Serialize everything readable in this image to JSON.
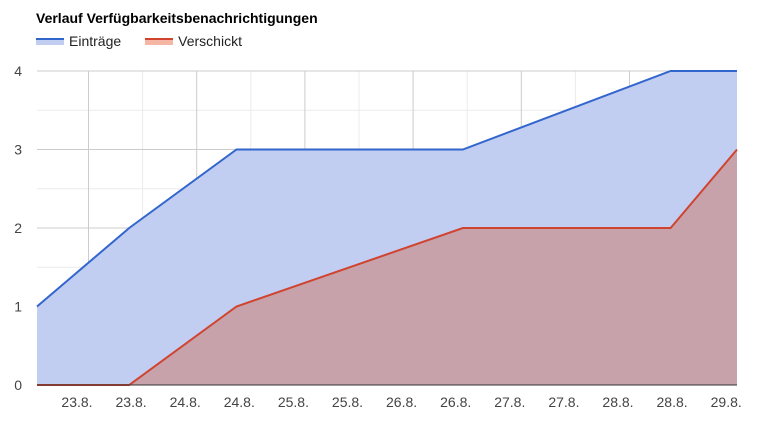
{
  "chart_data": {
    "type": "area",
    "title": "Verlauf Verfügbarkeitsbenachrichtigungen",
    "xlabel": "",
    "ylabel": "",
    "ylim": [
      0,
      4
    ],
    "yticks": [
      "0",
      "1",
      "2",
      "3",
      "4"
    ],
    "x_tick_labels": [
      "23.8.",
      "23.8.",
      "24.8.",
      "24.8.",
      "25.8.",
      "25.8.",
      "26.8.",
      "26.8.",
      "27.8.",
      "27.8.",
      "28.8.",
      "28.8.",
      "29.8."
    ],
    "grid": true,
    "legend_position": "top-left",
    "series": [
      {
        "name": "Einträge",
        "color": "#3366cc",
        "fill": "#c1cef2",
        "points": [
          {
            "x": "22.8.",
            "y": 1
          },
          {
            "x": "23.8.",
            "y": 2
          },
          {
            "x": "24.8.",
            "y": 3
          },
          {
            "x": "26.8.",
            "y": 3
          },
          {
            "x": "28.8.",
            "y": 4
          },
          {
            "x": "29.8.",
            "y": 4
          }
        ]
      },
      {
        "name": "Verschickt",
        "color": "#d0442f",
        "fill": "#c7a2ab",
        "points": [
          {
            "x": "22.8.",
            "y": 0
          },
          {
            "x": "23.8.",
            "y": 0
          },
          {
            "x": "24.8.",
            "y": 1
          },
          {
            "x": "26.8.",
            "y": 2
          },
          {
            "x": "28.8.",
            "y": 2
          },
          {
            "x": "29.8.",
            "y": 3
          }
        ]
      }
    ]
  }
}
